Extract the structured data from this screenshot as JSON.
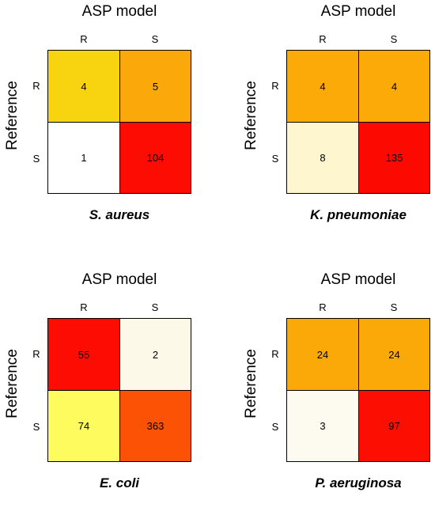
{
  "chart_data": [
    {
      "type": "heatmap",
      "title": "S. aureus",
      "xlabel": "ASP model",
      "ylabel": "Reference",
      "x_categories": [
        "R",
        "S"
      ],
      "y_categories": [
        "R",
        "S"
      ],
      "values": [
        [
          4,
          5
        ],
        [
          1,
          104
        ]
      ],
      "cell_colors": [
        [
          "#f7d40f",
          "#fba90a"
        ],
        [
          "#ffffff",
          "#fc0c02"
        ]
      ]
    },
    {
      "type": "heatmap",
      "title": "K. pneumoniae",
      "xlabel": "ASP model",
      "ylabel": "Reference",
      "x_categories": [
        "R",
        "S"
      ],
      "y_categories": [
        "R",
        "S"
      ],
      "values": [
        [
          4,
          4
        ],
        [
          8,
          135
        ]
      ],
      "cell_colors": [
        [
          "#fbaa08",
          "#fbaa08"
        ],
        [
          "#fdf6cf",
          "#fc0a02"
        ]
      ]
    },
    {
      "type": "heatmap",
      "title": "E. coli",
      "xlabel": "ASP model",
      "ylabel": "Reference",
      "x_categories": [
        "R",
        "S"
      ],
      "y_categories": [
        "R",
        "S"
      ],
      "values": [
        [
          55,
          2
        ],
        [
          74,
          363
        ]
      ],
      "cell_colors": [
        [
          "#fc0c03",
          "#fdf9e8"
        ],
        [
          "#fdfb5d",
          "#fc5205"
        ]
      ]
    },
    {
      "type": "heatmap",
      "title": "P. aeruginosa",
      "xlabel": "ASP model",
      "ylabel": "Reference",
      "x_categories": [
        "R",
        "S"
      ],
      "y_categories": [
        "R",
        "S"
      ],
      "values": [
        [
          24,
          24
        ],
        [
          3,
          97
        ]
      ],
      "cell_colors": [
        [
          "#fba908",
          "#fba908"
        ],
        [
          "#fdfaf0",
          "#fc0e02"
        ]
      ]
    }
  ]
}
